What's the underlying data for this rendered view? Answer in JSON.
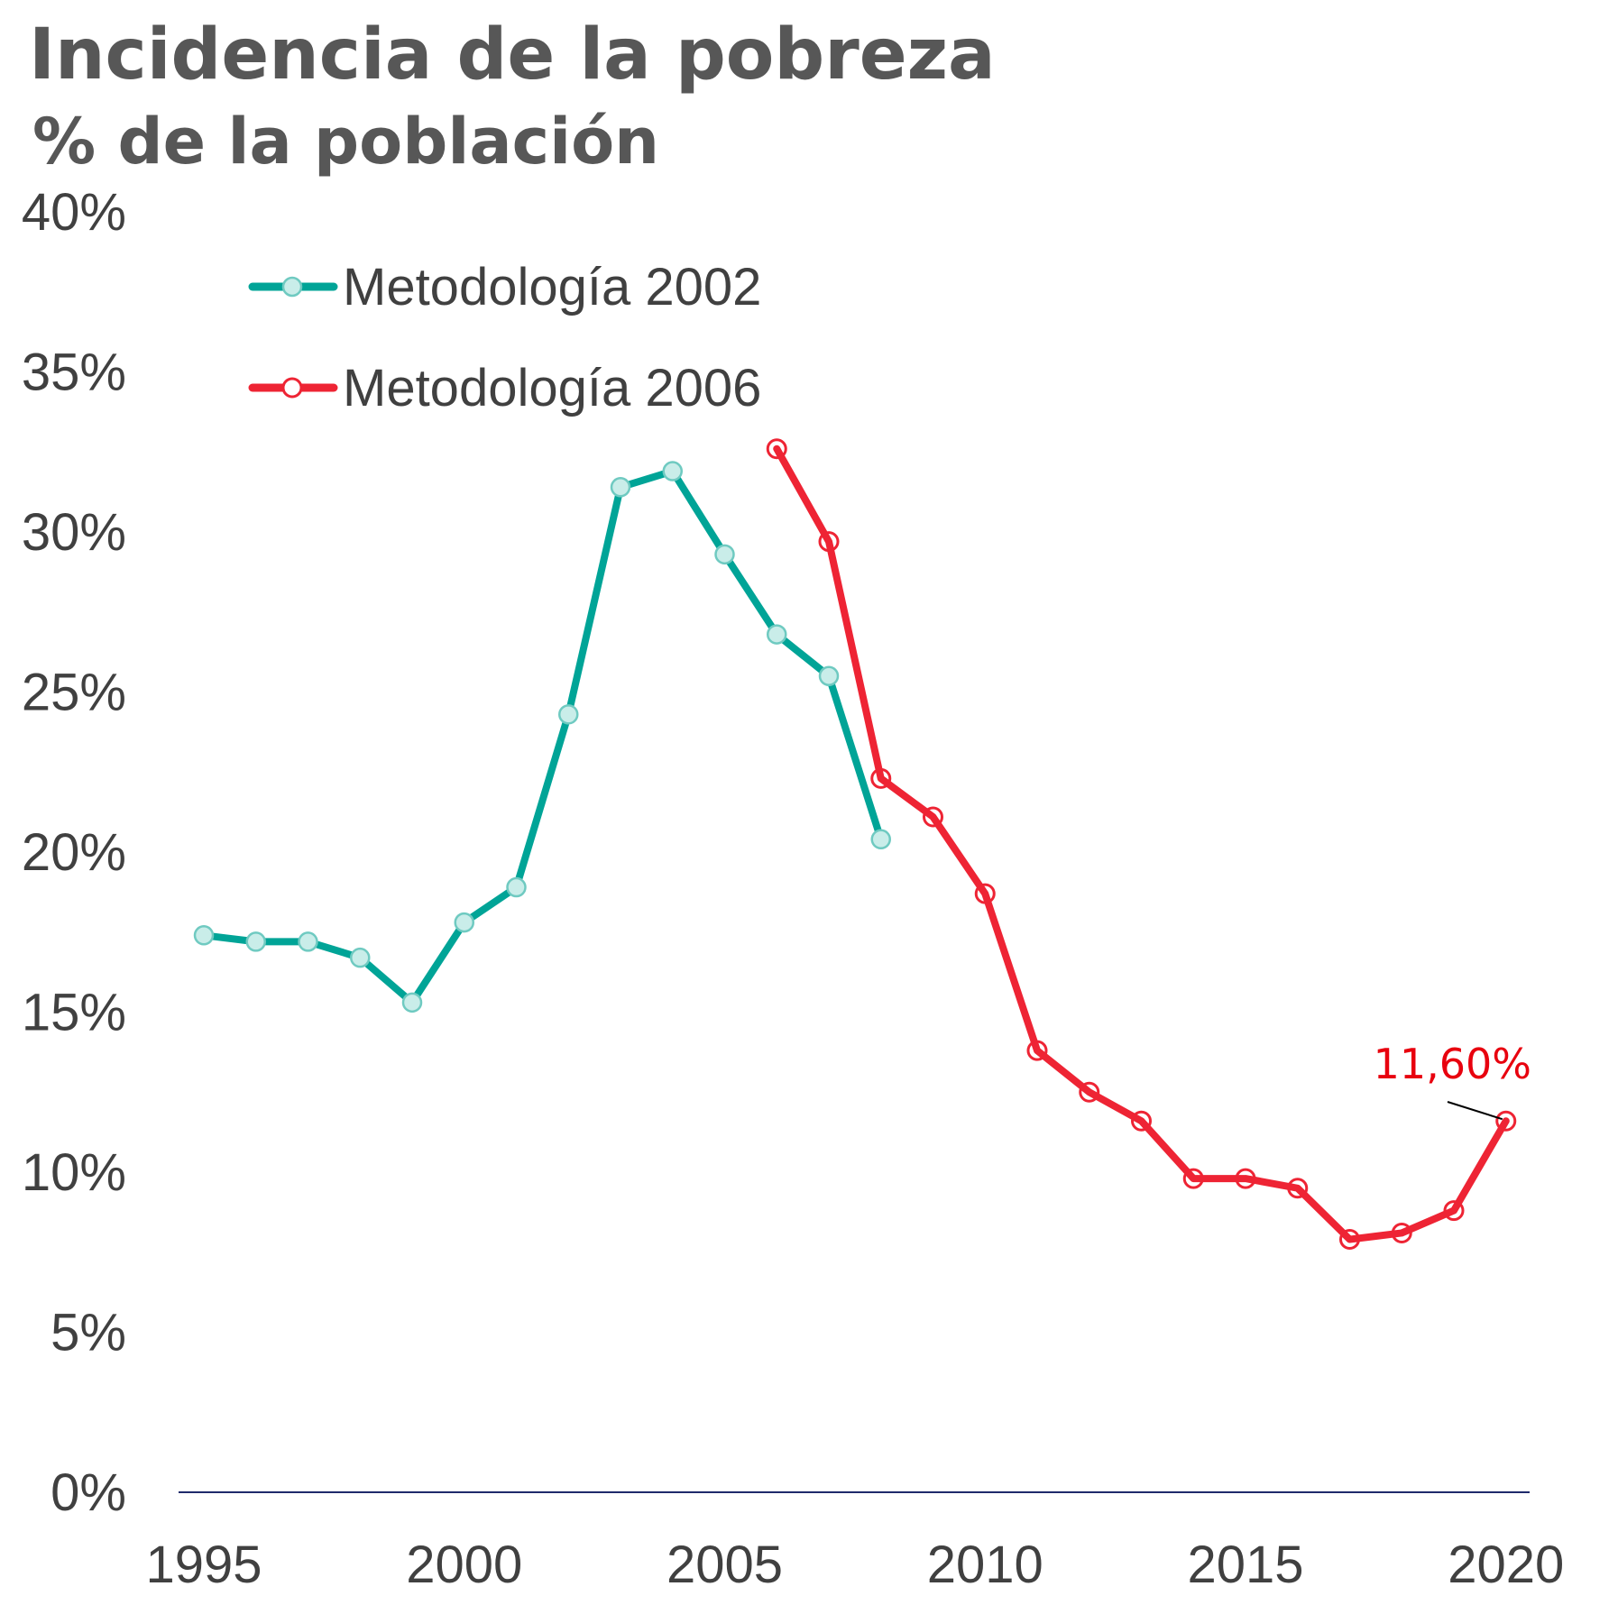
{
  "title": "Incidencia de la pobreza",
  "subtitle": "% de la población",
  "chart_data": {
    "type": "line",
    "title": "Incidencia de la pobreza",
    "subtitle": "% de la población",
    "xlabel": "",
    "ylabel": "",
    "xlim": [
      1995,
      2020
    ],
    "ylim": [
      0,
      40
    ],
    "x_ticks": [
      1995,
      2000,
      2005,
      2010,
      2015,
      2020
    ],
    "y_ticks": [
      0,
      5,
      10,
      15,
      20,
      25,
      30,
      35,
      40
    ],
    "x_tick_labels": [
      "1995",
      "2000",
      "2005",
      "2010",
      "2015",
      "2020"
    ],
    "y_tick_labels": [
      "0%",
      "5%",
      "10%",
      "15%",
      "20%",
      "25%",
      "30%",
      "35%",
      "40%"
    ],
    "grid": false,
    "legend_position": "top-left",
    "series": [
      {
        "name": "Metodología 2002",
        "color": "#00A497",
        "marker_fill": "#C9EDE9",
        "marker": "filled-circle",
        "x": [
          1995,
          1996,
          1997,
          1998,
          1999,
          2000,
          2001,
          2002,
          2003,
          2004,
          2005,
          2006,
          2007,
          2008
        ],
        "values": [
          17.4,
          17.2,
          17.2,
          16.7,
          15.3,
          17.8,
          18.9,
          24.3,
          31.4,
          31.9,
          29.3,
          26.8,
          25.5,
          20.4
        ]
      },
      {
        "name": "Metodología 2006",
        "color": "#EE2434",
        "marker_fill": "#ffffff",
        "marker": "hollow-circle",
        "x": [
          2006,
          2007,
          2008,
          2009,
          2010,
          2011,
          2012,
          2013,
          2014,
          2015,
          2016,
          2017,
          2018,
          2019,
          2020
        ],
        "values": [
          32.6,
          29.7,
          22.3,
          21.1,
          18.7,
          13.8,
          12.5,
          11.6,
          9.8,
          9.8,
          9.5,
          7.9,
          8.1,
          8.8,
          11.6
        ]
      }
    ],
    "annotations": [
      {
        "text": "11,60%",
        "x": 2020,
        "y": 11.6,
        "color": "#E8000E"
      }
    ]
  }
}
